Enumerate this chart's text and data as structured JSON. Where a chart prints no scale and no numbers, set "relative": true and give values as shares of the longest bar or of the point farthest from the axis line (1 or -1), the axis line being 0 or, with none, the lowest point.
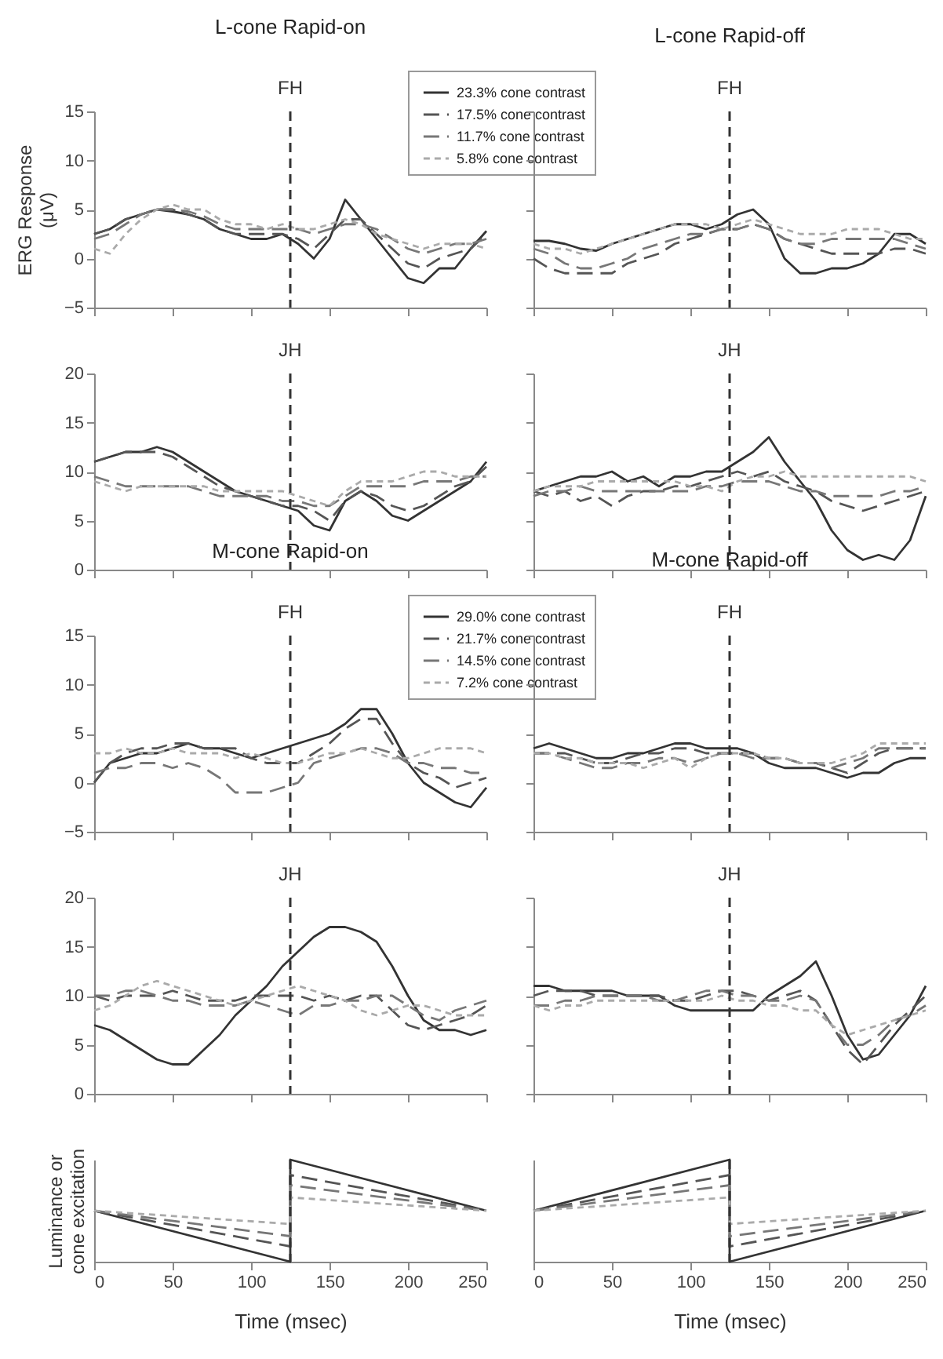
{
  "chart_data": [
    {
      "type": "line",
      "title": "L-cone Rapid-on",
      "ylabel": "ERG Response (μV)",
      "xlim": [
        0,
        250
      ],
      "xticks": [
        0,
        50,
        100,
        150,
        200,
        250
      ],
      "ylim": [
        -5,
        15
      ],
      "yticks": [
        -5,
        0,
        5,
        10,
        15
      ],
      "tick_labels": "y",
      "legend": "top right",
      "x": [
        0,
        10,
        20,
        30,
        40,
        50,
        60,
        70,
        80,
        90,
        100,
        110,
        120,
        130,
        140,
        150,
        160,
        170,
        180,
        190,
        200,
        210,
        220,
        230,
        240,
        250
      ],
      "ref_lines": [
        {
          "axis": "x",
          "value": 125,
          "label": "FH"
        }
      ],
      "series": [
        {
          "name": "23.3% cone contrast",
          "color": "#333333",
          "line_style": "solid",
          "values": [
            2.5,
            3,
            4,
            4.5,
            5,
            4.8,
            4.5,
            4,
            3,
            2.5,
            2,
            2,
            2.5,
            1.5,
            0,
            2,
            6,
            4,
            2,
            0,
            -2,
            -2.5,
            -1,
            -1,
            1,
            2.8
          ]
        },
        {
          "name": "17.5% cone contrast",
          "color": "#555555",
          "line_style": "dashed",
          "values": [
            2.5,
            3,
            4,
            4.5,
            5,
            5,
            4.5,
            4,
            3,
            2.5,
            2.5,
            2.5,
            2.5,
            2,
            1,
            2.5,
            4,
            4,
            2.5,
            1,
            -0.5,
            -1,
            0,
            0.5,
            1,
            2.5
          ]
        },
        {
          "name": "11.7% cone contrast",
          "color": "#777777",
          "line_style": "dashed",
          "values": [
            2,
            2.5,
            3.5,
            4.5,
            5,
            5,
            4.8,
            4.3,
            3.5,
            3,
            3,
            3,
            3,
            3,
            2.5,
            3,
            3.5,
            3.5,
            3,
            2,
            1,
            0.5,
            1,
            1.5,
            1.5,
            2
          ]
        },
        {
          "name": "5.8% cone contrast",
          "color": "#aaaaaa",
          "line_style": "dotted",
          "values": [
            1,
            0.5,
            2.5,
            4,
            5,
            5.5,
            5,
            5,
            4,
            3.5,
            3.5,
            3,
            3.5,
            3,
            3,
            3.5,
            4,
            3.5,
            2.5,
            2,
            1.5,
            1,
            1.5,
            1.5,
            1.5,
            1
          ]
        }
      ]
    },
    {
      "type": "line",
      "title": "L-cone Rapid-off",
      "xlim": [
        0,
        250
      ],
      "xticks": [
        0,
        50,
        100,
        150,
        200,
        250
      ],
      "ylim": [
        -5,
        15
      ],
      "yticks": [
        -5,
        0,
        5,
        10,
        15
      ],
      "tick_labels": false,
      "x": [
        0,
        10,
        20,
        30,
        40,
        50,
        60,
        70,
        80,
        90,
        100,
        110,
        120,
        130,
        140,
        150,
        160,
        170,
        180,
        190,
        200,
        210,
        220,
        230,
        240,
        250
      ],
      "ref_lines": [
        {
          "axis": "x",
          "value": 125,
          "label": "FH"
        }
      ],
      "series": [
        {
          "color": "#333333",
          "line_style": "solid",
          "values": [
            1.8,
            1.8,
            1.5,
            1,
            0.8,
            1.5,
            2,
            2.5,
            3,
            3.5,
            3.5,
            3,
            3.5,
            4.5,
            5,
            3.5,
            0,
            -1.5,
            -1.5,
            -1,
            -1,
            -0.5,
            0.5,
            2.5,
            2.5,
            1.5
          ]
        },
        {
          "color": "#555555",
          "line_style": "dashed",
          "values": [
            0,
            -1,
            -1.5,
            -1.5,
            -1.5,
            -1.5,
            -0.5,
            0,
            0.5,
            1.5,
            2,
            2.5,
            3,
            3,
            3.5,
            3,
            2,
            1.5,
            1,
            0.5,
            0.5,
            0.5,
            0.5,
            1,
            1,
            0.5
          ]
        },
        {
          "color": "#777777",
          "line_style": "dashed",
          "values": [
            1,
            0.5,
            -0.5,
            -1,
            -1,
            -0.5,
            0,
            1,
            1.5,
            2,
            2.5,
            2.5,
            3,
            3,
            3.5,
            3,
            2,
            1.5,
            1.5,
            2,
            2,
            2,
            2,
            2,
            1.5,
            1
          ]
        },
        {
          "color": "#aaaaaa",
          "line_style": "dotted",
          "values": [
            1.5,
            1,
            1,
            0.5,
            1,
            1.5,
            2,
            2.5,
            3,
            3.5,
            3.5,
            3.5,
            3,
            3.5,
            4,
            3.5,
            3,
            2.5,
            2.5,
            2.5,
            3,
            3,
            3,
            2.5,
            2,
            2
          ]
        }
      ]
    },
    {
      "type": "line",
      "xlim": [
        0,
        250
      ],
      "xticks": [
        0,
        50,
        100,
        150,
        200,
        250
      ],
      "ylim": [
        0,
        20
      ],
      "yticks": [
        0,
        5,
        10,
        15,
        20
      ],
      "tick_labels": "y",
      "x": [
        0,
        10,
        20,
        30,
        40,
        50,
        60,
        70,
        80,
        90,
        100,
        110,
        120,
        130,
        140,
        150,
        160,
        170,
        180,
        190,
        200,
        210,
        220,
        230,
        240,
        250
      ],
      "ref_lines": [
        {
          "axis": "x",
          "value": 125,
          "label": "JH"
        }
      ],
      "series": [
        {
          "color": "#333333",
          "line_style": "solid",
          "values": [
            11,
            11.5,
            12,
            12,
            12.5,
            12,
            11,
            10,
            9,
            8,
            7.5,
            7,
            6.5,
            6,
            4.5,
            4,
            7,
            8,
            7,
            5.5,
            5,
            6,
            7,
            8,
            9,
            11
          ]
        },
        {
          "color": "#555555",
          "line_style": "dashed",
          "values": [
            11,
            11.5,
            12,
            12,
            12,
            11.5,
            10.5,
            9.5,
            8.5,
            8,
            7.5,
            7,
            6.5,
            6.5,
            6,
            5,
            7,
            8,
            7.5,
            6.5,
            6,
            6.5,
            7.5,
            8.5,
            9,
            10.5
          ]
        },
        {
          "color": "#777777",
          "line_style": "dashed",
          "values": [
            9.5,
            9,
            8.5,
            8.5,
            8.5,
            8.5,
            8.5,
            8,
            7.5,
            7.5,
            7.5,
            7.5,
            7,
            7,
            6.5,
            6.5,
            7.5,
            8.5,
            8.5,
            8.5,
            8.5,
            9,
            9,
            9,
            9.5,
            9.5
          ]
        },
        {
          "color": "#aaaaaa",
          "line_style": "dotted",
          "values": [
            9,
            8.5,
            8,
            8.5,
            8.5,
            8.5,
            8.5,
            8.5,
            8,
            8,
            8,
            8,
            8,
            7.5,
            7,
            6.5,
            8,
            9,
            9,
            9,
            9.5,
            10,
            10,
            9.5,
            9.5,
            9.5
          ]
        }
      ]
    },
    {
      "type": "line",
      "xlim": [
        0,
        250
      ],
      "xticks": [
        0,
        50,
        100,
        150,
        200,
        250
      ],
      "ylim": [
        0,
        20
      ],
      "yticks": [
        0,
        5,
        10,
        15,
        20
      ],
      "tick_labels": false,
      "x": [
        0,
        10,
        20,
        30,
        40,
        50,
        60,
        70,
        80,
        90,
        100,
        110,
        120,
        130,
        140,
        150,
        160,
        170,
        180,
        190,
        200,
        210,
        220,
        230,
        240,
        250
      ],
      "ref_lines": [
        {
          "axis": "x",
          "value": 125,
          "label": "JH"
        }
      ],
      "series": [
        {
          "color": "#333333",
          "line_style": "solid",
          "values": [
            8,
            8.5,
            9,
            9.5,
            9.5,
            10,
            9,
            9.5,
            8.5,
            9.5,
            9.5,
            10,
            10,
            11,
            12,
            13.5,
            11,
            9,
            7,
            4,
            2,
            1,
            1.5,
            1,
            3,
            7.5
          ]
        },
        {
          "color": "#555555",
          "line_style": "dashed",
          "values": [
            8,
            7.5,
            8,
            7,
            7.5,
            6.5,
            7.5,
            8,
            8,
            8.5,
            8.5,
            9,
            9.5,
            10,
            9.5,
            10,
            9,
            8.5,
            8,
            7,
            6.5,
            6,
            6.5,
            7,
            7.5,
            8
          ]
        },
        {
          "color": "#777777",
          "line_style": "dashed",
          "values": [
            7.5,
            8,
            8,
            8.5,
            8,
            8,
            8,
            8,
            8,
            8,
            8,
            8.5,
            8.5,
            9,
            9,
            9,
            8.5,
            8,
            8,
            7.5,
            7.5,
            7.5,
            7.5,
            8,
            8,
            8.5
          ]
        },
        {
          "color": "#aaaaaa",
          "line_style": "dotted",
          "values": [
            8,
            8.5,
            8.5,
            8.5,
            9,
            9,
            9,
            9,
            9,
            9,
            8.5,
            8.5,
            8,
            9,
            9.5,
            9.5,
            10,
            9.5,
            9.5,
            9.5,
            9.5,
            9.5,
            9.5,
            9.5,
            9.5,
            9
          ]
        }
      ]
    },
    {
      "type": "line",
      "title": "M-cone Rapid-on",
      "xlim": [
        0,
        250
      ],
      "xticks": [
        0,
        50,
        100,
        150,
        200,
        250
      ],
      "ylim": [
        -5,
        15
      ],
      "yticks": [
        -5,
        0,
        5,
        10,
        15
      ],
      "tick_labels": "y",
      "legend": "top right",
      "x": [
        0,
        10,
        20,
        30,
        40,
        50,
        60,
        70,
        80,
        90,
        100,
        110,
        120,
        130,
        140,
        150,
        160,
        170,
        180,
        190,
        200,
        210,
        220,
        230,
        240,
        250
      ],
      "ref_lines": [
        {
          "axis": "x",
          "value": 125,
          "label": "FH"
        }
      ],
      "series": [
        {
          "name": "29.0% cone contrast",
          "color": "#333333",
          "line_style": "solid",
          "values": [
            0,
            2,
            2.5,
            3,
            3,
            3.5,
            4,
            3.5,
            3.5,
            3,
            2.5,
            3,
            3.5,
            4,
            4.5,
            5,
            6,
            7.5,
            7.5,
            5,
            2,
            0,
            -1,
            -2,
            -2.5,
            -0.5
          ]
        },
        {
          "name": "21.7% cone contrast",
          "color": "#555555",
          "line_style": "dashed",
          "values": [
            0,
            2,
            3,
            3.5,
            3.5,
            4,
            4,
            3.5,
            3.5,
            3.5,
            2.5,
            2,
            2,
            2,
            3,
            4,
            5.5,
            6.5,
            6.5,
            4,
            2,
            1,
            0.5,
            -0.5,
            0,
            0.5
          ]
        },
        {
          "name": "14.5% cone contrast",
          "color": "#777777",
          "line_style": "dashed",
          "values": [
            1,
            1.5,
            1.5,
            2,
            2,
            1.5,
            2,
            1.5,
            0.5,
            -1,
            -1,
            -1,
            -0.5,
            0,
            2,
            2.5,
            3,
            3.5,
            3.5,
            3,
            2,
            2,
            1.5,
            1.5,
            1,
            1
          ]
        },
        {
          "name": "7.2% cone contrast",
          "color": "#aaaaaa",
          "line_style": "dotted",
          "values": [
            3,
            3,
            3.5,
            3,
            3,
            3.5,
            3,
            3,
            3,
            2.5,
            3,
            2.5,
            2,
            2,
            2.5,
            3,
            3,
            3.5,
            3,
            2.5,
            2.5,
            3,
            3.5,
            3.5,
            3.5,
            3
          ]
        }
      ]
    },
    {
      "type": "line",
      "title": "M-cone Rapid-off",
      "xlim": [
        0,
        250
      ],
      "xticks": [
        0,
        50,
        100,
        150,
        200,
        250
      ],
      "ylim": [
        -5,
        15
      ],
      "yticks": [
        -5,
        0,
        5,
        10,
        15
      ],
      "tick_labels": false,
      "x": [
        0,
        10,
        20,
        30,
        40,
        50,
        60,
        70,
        80,
        90,
        100,
        110,
        120,
        130,
        140,
        150,
        160,
        170,
        180,
        190,
        200,
        210,
        220,
        230,
        240,
        250
      ],
      "ref_lines": [
        {
          "axis": "x",
          "value": 125,
          "label": "FH"
        }
      ],
      "series": [
        {
          "color": "#333333",
          "line_style": "solid",
          "values": [
            3.5,
            4,
            3.5,
            3,
            2.5,
            2.5,
            3,
            3,
            3.5,
            4,
            4,
            3.5,
            3.5,
            3.5,
            3,
            2,
            1.5,
            1.5,
            1.5,
            1,
            0.5,
            1,
            1,
            2,
            2.5,
            2.5
          ]
        },
        {
          "color": "#555555",
          "line_style": "dashed",
          "values": [
            3,
            3,
            3,
            2.5,
            2,
            2,
            2.5,
            3,
            3,
            3.5,
            3.5,
            3,
            3,
            3,
            3,
            2.5,
            2.5,
            2,
            2,
            1.5,
            1,
            2,
            3,
            3.5,
            3.5,
            3.5
          ]
        },
        {
          "color": "#777777",
          "line_style": "dashed",
          "values": [
            3,
            3,
            2.5,
            2,
            1.5,
            1.5,
            2,
            2,
            2.5,
            2.5,
            2,
            2.5,
            3,
            3,
            2.5,
            2.5,
            2.5,
            2,
            2,
            1.5,
            2,
            2.5,
            3.5,
            3.5,
            3.5,
            3.5
          ]
        },
        {
          "color": "#aaaaaa",
          "line_style": "dotted",
          "values": [
            3,
            3,
            2.5,
            2.5,
            2,
            2,
            2,
            1.5,
            2,
            2.5,
            1.5,
            2.5,
            3,
            3,
            3,
            2.5,
            2.5,
            2,
            2,
            2,
            2.5,
            3,
            4,
            4,
            4,
            4
          ]
        }
      ]
    },
    {
      "type": "line",
      "xlim": [
        0,
        250
      ],
      "xticks": [
        0,
        50,
        100,
        150,
        200,
        250
      ],
      "ylim": [
        0,
        20
      ],
      "yticks": [
        0,
        5,
        10,
        15,
        20
      ],
      "tick_labels": "y",
      "x": [
        0,
        10,
        20,
        30,
        40,
        50,
        60,
        70,
        80,
        90,
        100,
        110,
        120,
        130,
        140,
        150,
        160,
        170,
        180,
        190,
        200,
        210,
        220,
        230,
        240,
        250
      ],
      "ref_lines": [
        {
          "axis": "x",
          "value": 125,
          "label": "JH"
        }
      ],
      "series": [
        {
          "color": "#333333",
          "line_style": "solid",
          "values": [
            7,
            6.5,
            5.5,
            4.5,
            3.5,
            3,
            3,
            4.5,
            6,
            8,
            9.5,
            11,
            13,
            14.5,
            16,
            17,
            17,
            16.5,
            15.5,
            13,
            10,
            7.5,
            6.5,
            6.5,
            6,
            6.5
          ]
        },
        {
          "color": "#555555",
          "line_style": "dashed",
          "values": [
            10,
            9.5,
            10,
            10,
            10,
            10.5,
            10,
            9.5,
            9.5,
            9.5,
            10,
            10,
            10,
            10,
            9.5,
            10,
            9.5,
            10,
            10,
            8.5,
            7,
            6.5,
            7,
            7.5,
            8,
            9
          ]
        },
        {
          "color": "#777777",
          "line_style": "dashed",
          "values": [
            10,
            10,
            10.5,
            10.5,
            10,
            9.5,
            9.5,
            9,
            9,
            9,
            9.5,
            9,
            8.5,
            8,
            9,
            9,
            9.5,
            9.5,
            10,
            10,
            9,
            8,
            7.5,
            8.5,
            9,
            9.5
          ]
        },
        {
          "color": "#aaaaaa",
          "line_style": "dotted",
          "values": [
            8.5,
            9,
            10,
            11,
            11.5,
            11,
            10.5,
            10,
            9.5,
            9,
            9.5,
            10,
            10.5,
            11,
            10.5,
            10,
            9.5,
            8.5,
            8,
            8.5,
            9,
            9,
            8.5,
            8,
            8,
            8
          ]
        }
      ]
    },
    {
      "type": "line",
      "xlim": [
        0,
        250
      ],
      "xticks": [
        0,
        50,
        100,
        150,
        200,
        250
      ],
      "ylim": [
        0,
        20
      ],
      "yticks": [
        0,
        5,
        10,
        15,
        20
      ],
      "tick_labels": false,
      "x": [
        0,
        10,
        20,
        30,
        40,
        50,
        60,
        70,
        80,
        90,
        100,
        110,
        120,
        130,
        140,
        150,
        160,
        170,
        180,
        190,
        200,
        210,
        220,
        230,
        240,
        250
      ],
      "ref_lines": [
        {
          "axis": "x",
          "value": 125,
          "label": "JH"
        }
      ],
      "series": [
        {
          "color": "#333333",
          "line_style": "solid",
          "values": [
            11,
            11,
            10.5,
            10.5,
            10.5,
            10.5,
            10,
            10,
            10,
            9,
            8.5,
            8.5,
            8.5,
            8.5,
            8.5,
            10,
            11,
            12,
            13.5,
            10,
            6,
            3.5,
            4,
            6,
            8,
            11
          ]
        },
        {
          "color": "#555555",
          "line_style": "dashed",
          "values": [
            10,
            10.5,
            10.5,
            10.5,
            10,
            10,
            10,
            10,
            10,
            9.5,
            9.5,
            10,
            10.5,
            10.5,
            10,
            9.5,
            10,
            10.5,
            9.5,
            7,
            4.5,
            3,
            5,
            7,
            8.5,
            10
          ]
        },
        {
          "color": "#777777",
          "line_style": "dashed",
          "values": [
            9,
            9,
            9.5,
            9.5,
            10,
            10,
            10,
            10,
            9.5,
            9.5,
            10,
            10.5,
            10.5,
            10,
            10,
            9.5,
            9.5,
            10,
            9.5,
            7,
            5,
            5,
            6,
            7.5,
            8,
            9
          ]
        },
        {
          "color": "#aaaaaa",
          "line_style": "dotted",
          "values": [
            9,
            8.5,
            9,
            9,
            9.5,
            9.5,
            9.5,
            9.5,
            9.5,
            9.5,
            9.5,
            9.5,
            10,
            9.5,
            9.5,
            9,
            9,
            8.5,
            8.5,
            7,
            6,
            6.5,
            7,
            7.5,
            8,
            8.5
          ]
        }
      ]
    },
    {
      "type": "line",
      "relative": true,
      "ylabel": "Luminance or cone excitation",
      "xlabel": "Time (msec)",
      "xlim": [
        0,
        250
      ],
      "xticks": [
        0,
        50,
        100,
        150,
        200,
        250
      ],
      "tick_labels": "x",
      "x": [
        0,
        125,
        125,
        250
      ],
      "ref_lines": [
        {
          "axis": "x",
          "value": 125,
          "label": null
        }
      ],
      "series": [
        {
          "color": "#333333",
          "line_style": "solid",
          "values": [
            0.5,
            0,
            1,
            0.5
          ]
        },
        {
          "color": "#555555",
          "line_style": "dashed",
          "values": [
            0.5,
            0.15,
            0.85,
            0.5
          ]
        },
        {
          "color": "#777777",
          "line_style": "dashed",
          "values": [
            0.5,
            0.25,
            0.75,
            0.5
          ]
        },
        {
          "color": "#aaaaaa",
          "line_style": "dotted",
          "values": [
            0.5,
            0.37,
            0.63,
            0.5
          ]
        }
      ]
    },
    {
      "type": "line",
      "relative": true,
      "xlabel": "Time (msec)",
      "xlim": [
        0,
        250
      ],
      "xticks": [
        0,
        50,
        100,
        150,
        200,
        250
      ],
      "tick_labels": "x",
      "x": [
        0,
        125,
        125,
        250
      ],
      "ref_lines": [
        {
          "axis": "x",
          "value": 125,
          "label": null
        }
      ],
      "series": [
        {
          "color": "#333333",
          "line_style": "solid",
          "values": [
            0.5,
            1,
            0,
            0.5
          ]
        },
        {
          "color": "#555555",
          "line_style": "dashed",
          "values": [
            0.5,
            0.85,
            0.15,
            0.5
          ]
        },
        {
          "color": "#777777",
          "line_style": "dashed",
          "values": [
            0.5,
            0.75,
            0.25,
            0.5
          ]
        },
        {
          "color": "#aaaaaa",
          "line_style": "dotted",
          "values": [
            0.5,
            0.63,
            0.37,
            0.5
          ]
        }
      ]
    }
  ]
}
